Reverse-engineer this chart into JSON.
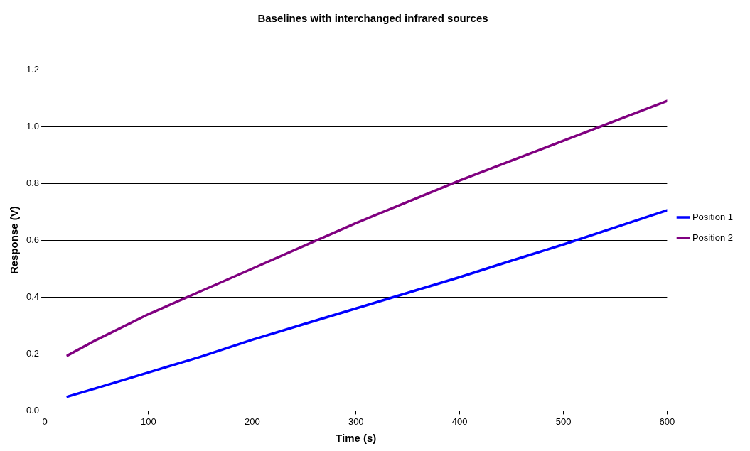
{
  "chart_data": {
    "type": "line",
    "title": "Baselines with interchanged infrared sources",
    "xlabel": "Time (s)",
    "ylabel": "Response (V)",
    "xlim": [
      0,
      600
    ],
    "xticks": [
      0,
      100,
      200,
      300,
      400,
      500,
      600
    ],
    "ylim": [
      0,
      1.2
    ],
    "yticks": [
      {
        "value": 0,
        "label": "0.0"
      },
      {
        "value": 0.2,
        "label": "0.2"
      },
      {
        "value": 0.4,
        "label": "0.4"
      },
      {
        "value": 0.6,
        "label": "0.6"
      },
      {
        "value": 0.8,
        "label": "0.8"
      },
      {
        "value": 1,
        "label": "1.0"
      },
      {
        "value": 1.2,
        "label": "1.2"
      }
    ],
    "grid": "y",
    "legend": "right",
    "marker": "none",
    "line_style": "solid",
    "series": [
      {
        "name": "Position 1",
        "color": "#0000ff",
        "x": [
          22,
          50,
          100,
          150,
          200,
          250,
          300,
          350,
          400,
          450,
          500,
          550,
          600
        ],
        "values": [
          0.05,
          0.08,
          0.135,
          0.19,
          0.25,
          0.305,
          0.36,
          0.415,
          0.47,
          0.528,
          0.585,
          0.645,
          0.705
        ]
      },
      {
        "name": "Position 2",
        "color": "#800080",
        "x": [
          22,
          50,
          100,
          150,
          200,
          250,
          300,
          350,
          400,
          450,
          500,
          550,
          600
        ],
        "values": [
          0.195,
          0.25,
          0.34,
          0.42,
          0.5,
          0.58,
          0.66,
          0.735,
          0.81,
          0.88,
          0.95,
          1.02,
          1.09
        ]
      }
    ]
  }
}
